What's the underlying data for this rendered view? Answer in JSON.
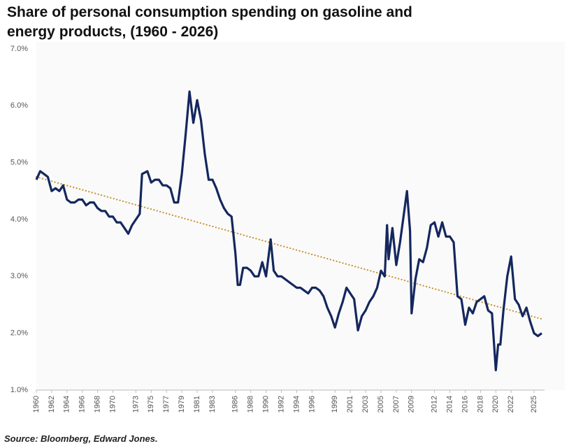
{
  "chart_data": {
    "type": "line",
    "title": "Share of personal consumption spending on gasoline and energy products, (1960 - 2026)",
    "source": "Source: Bloomberg, Edward Jones.",
    "xlim": [
      1960,
      2026
    ],
    "xticks": [
      1960,
      1962,
      1964,
      1966,
      1968,
      1970,
      1973,
      1975,
      1977,
      1979,
      1981,
      1983,
      1986,
      1988,
      1990,
      1992,
      1994,
      1996,
      1999,
      2001,
      2003,
      2005,
      2007,
      2009,
      2012,
      2014,
      2016,
      2018,
      2020,
      2022,
      2025
    ],
    "ylim": [
      1,
      7
    ],
    "yticks": [
      {
        "value": 1,
        "label": "1.0%"
      },
      {
        "value": 2,
        "label": "2.0%"
      },
      {
        "value": 3,
        "label": "3.0%"
      },
      {
        "value": 4,
        "label": "4.0%"
      },
      {
        "value": 5,
        "label": "5.0%"
      },
      {
        "value": 6,
        "label": "6.0%"
      },
      {
        "value": 7,
        "label": "7.0%"
      }
    ],
    "series": [
      {
        "color": "#14275e",
        "x": [
          1960,
          1960.5,
          1961,
          1961.5,
          1962,
          1962.5,
          1963,
          1963.5,
          1964,
          1964.5,
          1965,
          1965.5,
          1966,
          1966.5,
          1967,
          1967.5,
          1968,
          1968.5,
          1969,
          1969.5,
          1970,
          1970.5,
          1971,
          1971.5,
          1972,
          1972.5,
          1973,
          1973.5,
          1973.8,
          1974.5,
          1975,
          1975.5,
          1976,
          1976.5,
          1977,
          1977.5,
          1978,
          1978.5,
          1979,
          1979.5,
          1980,
          1980.5,
          1981,
          1981.5,
          1982,
          1982.5,
          1983,
          1983.5,
          1984,
          1984.5,
          1985,
          1985.5,
          1986,
          1986.3,
          1986.6,
          1987,
          1987.5,
          1988,
          1988.5,
          1989,
          1989.5,
          1990,
          1990.6,
          1991,
          1991.5,
          1992,
          1992.5,
          1993,
          1993.5,
          1994,
          1994.5,
          1995,
          1995.5,
          1996,
          1996.5,
          1997,
          1997.5,
          1998,
          1998.5,
          1999,
          1999.5,
          2000,
          2000.5,
          2001,
          2001.5,
          2002,
          2002.5,
          2003,
          2003.5,
          2004,
          2004.5,
          2005,
          2005.5,
          2005.8,
          2006,
          2006.5,
          2007,
          2007.5,
          2008,
          2008.4,
          2008.8,
          2009,
          2009.5,
          2010,
          2010.5,
          2011,
          2011.5,
          2012,
          2012.5,
          2013,
          2013.5,
          2014,
          2014.5,
          2015,
          2015.5,
          2016,
          2016.5,
          2017,
          2017.5,
          2018,
          2018.5,
          2019,
          2019.5,
          2020,
          2020.3,
          2020.6,
          2021,
          2021.5,
          2022,
          2022.5,
          2023,
          2023.5,
          2024,
          2024.5,
          2025,
          2025.5,
          2026
        ],
        "values": [
          4.7,
          4.85,
          4.8,
          4.75,
          4.5,
          4.55,
          4.5,
          4.6,
          4.35,
          4.3,
          4.3,
          4.35,
          4.35,
          4.25,
          4.3,
          4.3,
          4.2,
          4.15,
          4.15,
          4.05,
          4.05,
          3.95,
          3.95,
          3.85,
          3.75,
          3.9,
          4.0,
          4.1,
          4.8,
          4.85,
          4.65,
          4.7,
          4.7,
          4.6,
          4.6,
          4.55,
          4.3,
          4.3,
          4.8,
          5.5,
          6.25,
          5.7,
          6.1,
          5.75,
          5.15,
          4.7,
          4.7,
          4.55,
          4.35,
          4.2,
          4.1,
          4.05,
          3.4,
          2.85,
          2.85,
          3.15,
          3.15,
          3.1,
          3.0,
          3.0,
          3.25,
          3.0,
          3.65,
          3.1,
          3.0,
          3.0,
          2.95,
          2.9,
          2.85,
          2.8,
          2.8,
          2.75,
          2.7,
          2.8,
          2.8,
          2.75,
          2.65,
          2.45,
          2.3,
          2.1,
          2.35,
          2.55,
          2.8,
          2.7,
          2.6,
          2.05,
          2.3,
          2.4,
          2.55,
          2.65,
          2.8,
          3.1,
          3.0,
          3.9,
          3.3,
          3.85,
          3.2,
          3.6,
          4.1,
          4.5,
          3.8,
          2.35,
          2.95,
          3.3,
          3.25,
          3.5,
          3.9,
          3.95,
          3.7,
          3.95,
          3.7,
          3.7,
          3.6,
          2.65,
          2.6,
          2.15,
          2.45,
          2.35,
          2.55,
          2.6,
          2.65,
          2.4,
          2.35,
          1.35,
          1.8,
          1.8,
          2.4,
          3.0,
          3.35,
          2.6,
          2.5,
          2.3,
          2.45,
          2.2,
          2.0,
          1.95,
          2.0
        ]
      }
    ],
    "trend": {
      "color": "#c8922e",
      "x": [
        1960,
        2026
      ],
      "values": [
        4.75,
        2.25
      ]
    }
  }
}
